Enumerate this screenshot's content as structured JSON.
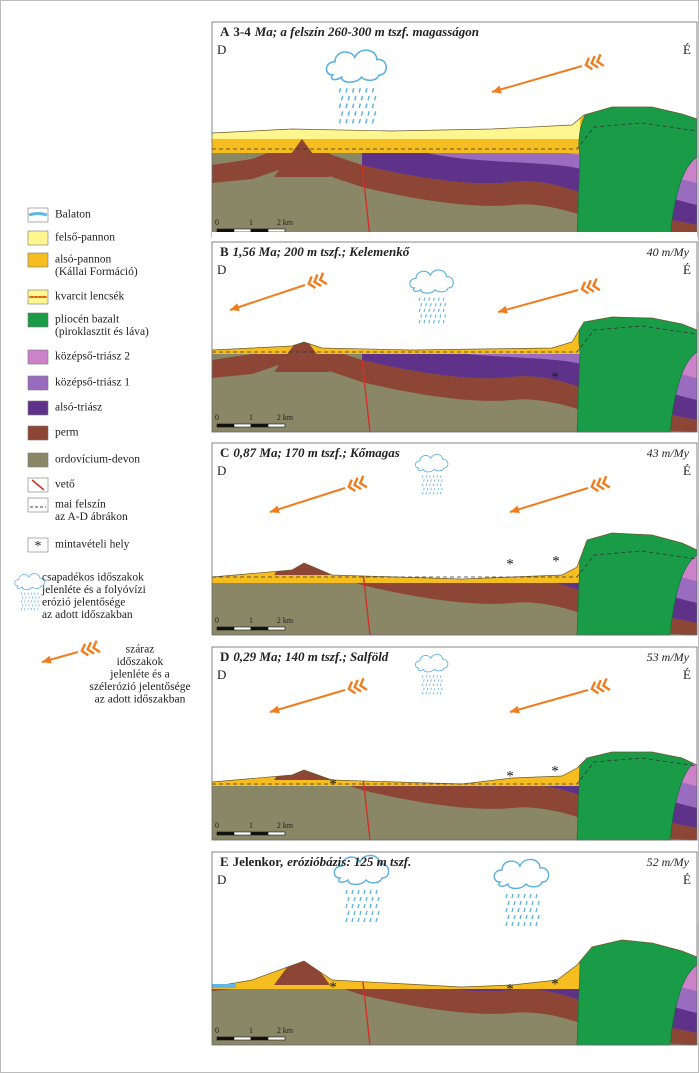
{
  "legend": {
    "items": [
      {
        "lines": [
          "Balaton"
        ]
      },
      {
        "lines": [
          "felső-pannon"
        ]
      },
      {
        "lines": [
          "alsó-pannon",
          "(Kállai Formáció)"
        ]
      },
      {
        "lines": [
          "kvarcit lencsék"
        ]
      },
      {
        "lines": [
          "pliocén bazalt",
          "(piroklasztit és láva)"
        ]
      },
      {
        "lines": [
          "középső-triász 2"
        ]
      },
      {
        "lines": [
          "középső-triász 1"
        ]
      },
      {
        "lines": [
          "alsó-triász"
        ]
      },
      {
        "lines": [
          "perm"
        ]
      },
      {
        "lines": [
          "ordovícium-devon"
        ]
      },
      {
        "lines": [
          "vető"
        ]
      },
      {
        "lines": [
          "mai felszín",
          "az A-D ábrákon"
        ]
      },
      {
        "symbol": "*",
        "lines": [
          "mintavételi hely"
        ]
      },
      {
        "lines": [
          "csapadékos időszakok",
          "jelenléte és a folyóvízi",
          "erózió jelentősége",
          "az adott időszakban"
        ]
      },
      {
        "lines": [
          "száraz",
          "időszakok",
          "jelenléte és a",
          "szélerózió jelentősége",
          "az adott időszakban"
        ]
      }
    ]
  },
  "panels": [
    {
      "letter": "A",
      "title_parts": [
        "3-4",
        "Ma; a felszín 260-300 m tszf. magasságon"
      ],
      "left": "D",
      "right": "É",
      "scale": [
        "0",
        "1",
        "2 km"
      ]
    },
    {
      "letter": "B",
      "title_parts": [
        "1,56 Ma; 200 m tszf.; Kelemenkő"
      ],
      "rate": "40 m/My",
      "left": "D",
      "right": "É",
      "scale": [
        "0",
        "1",
        "2 km"
      ]
    },
    {
      "letter": "C",
      "title_parts": [
        "0,87 Ma; 170 m tszf.; Kőmagas"
      ],
      "rate": "43 m/My",
      "left": "D",
      "right": "É",
      "scale": [
        "0",
        "1",
        "2 km"
      ]
    },
    {
      "letter": "D",
      "title_parts": [
        "0,29 Ma; 140 m tszf.; Salföld"
      ],
      "rate": "53 m/My",
      "left": "D",
      "right": "É",
      "scale": [
        "0",
        "1",
        "2 km"
      ]
    },
    {
      "letter": "E",
      "title_parts": [
        "Jelenkor,",
        "erózióbázis: 125 m tszf."
      ],
      "rate": "52 m/My",
      "left": "D",
      "right": "É",
      "scale": [
        "0",
        "1",
        "2 km"
      ]
    }
  ]
}
